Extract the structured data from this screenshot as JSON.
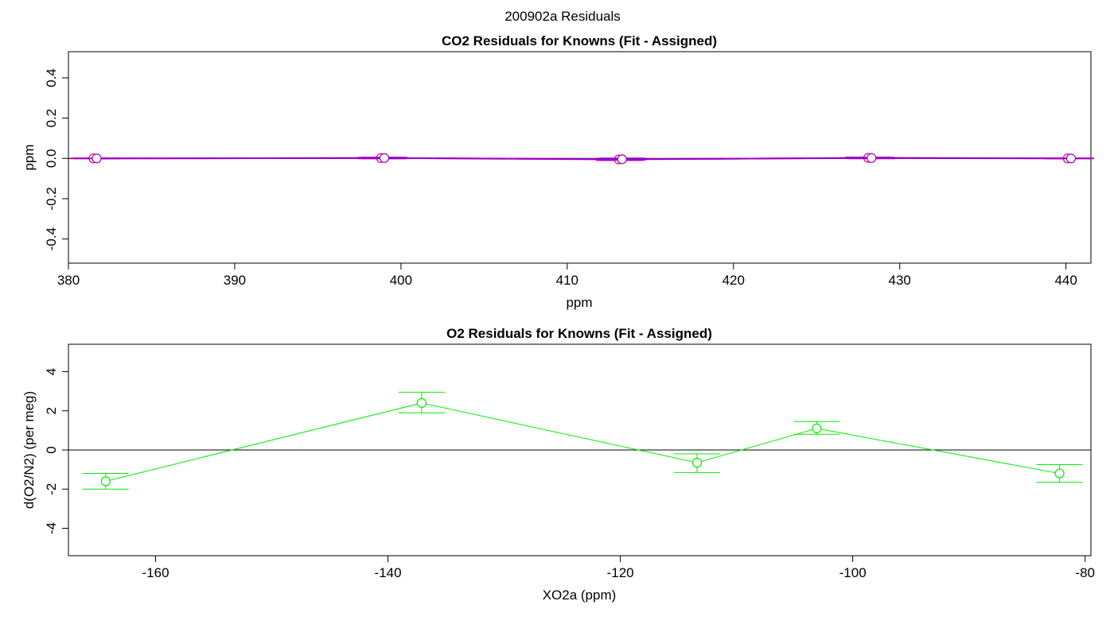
{
  "main_title": "200902a  Residuals",
  "colors": {
    "co2_a": "#e6007e",
    "co2_b": "#9900cc",
    "o2": "#00ee00",
    "zero": "#000000"
  },
  "chart_data": [
    {
      "type": "scatter",
      "title": "CO2 Residuals for Knowns (Fit - Assigned)",
      "xlabel": "ppm",
      "ylabel": "ppm",
      "xlim": [
        380,
        441.5
      ],
      "ylim": [
        -0.52,
        0.53
      ],
      "xticks": [
        "380",
        "390",
        "400",
        "410",
        "420",
        "430",
        "440"
      ],
      "yticks": [
        "-0.4",
        "-0.2",
        "0.0",
        "0.2",
        "0.4"
      ],
      "grid": false,
      "zero_line": true,
      "series": [
        {
          "x": [
            381.5,
            398.8,
            413.1,
            428.1,
            440.1
          ],
          "y": [
            0.0,
            0.002,
            -0.005,
            0.003,
            0.0
          ],
          "err": [
            0.002,
            0.004,
            0.006,
            0.004,
            0.002
          ]
        },
        {
          "x": [
            381.7,
            399.0,
            413.3,
            428.3,
            440.3
          ],
          "y": [
            0.0,
            0.002,
            -0.004,
            0.002,
            0.0
          ],
          "err": [
            0.002,
            0.004,
            0.006,
            0.004,
            0.002
          ]
        }
      ]
    },
    {
      "type": "line",
      "title": "O2 Residuals for Knowns (Fit - Assigned)",
      "xlabel": "XO2a (ppm)",
      "ylabel": "d(O2/N2) (per meg)",
      "xlim": [
        -167.5,
        -79.5
      ],
      "ylim": [
        -5.4,
        5.4
      ],
      "xticks": [
        "-160",
        "-140",
        "-120",
        "-100",
        "-80"
      ],
      "yticks": [
        "-4",
        "-2",
        "0",
        "2",
        "4"
      ],
      "grid": false,
      "zero_line": true,
      "series": [
        {
          "x": [
            -164.3,
            -137.1,
            -113.4,
            -103.1,
            -82.2
          ],
          "y": [
            -1.6,
            2.4,
            -0.65,
            1.1,
            -1.2
          ],
          "err_lo": [
            0.4,
            0.5,
            0.5,
            0.3,
            0.45
          ],
          "err_hi": [
            0.4,
            0.55,
            0.45,
            0.35,
            0.45
          ]
        }
      ]
    }
  ]
}
